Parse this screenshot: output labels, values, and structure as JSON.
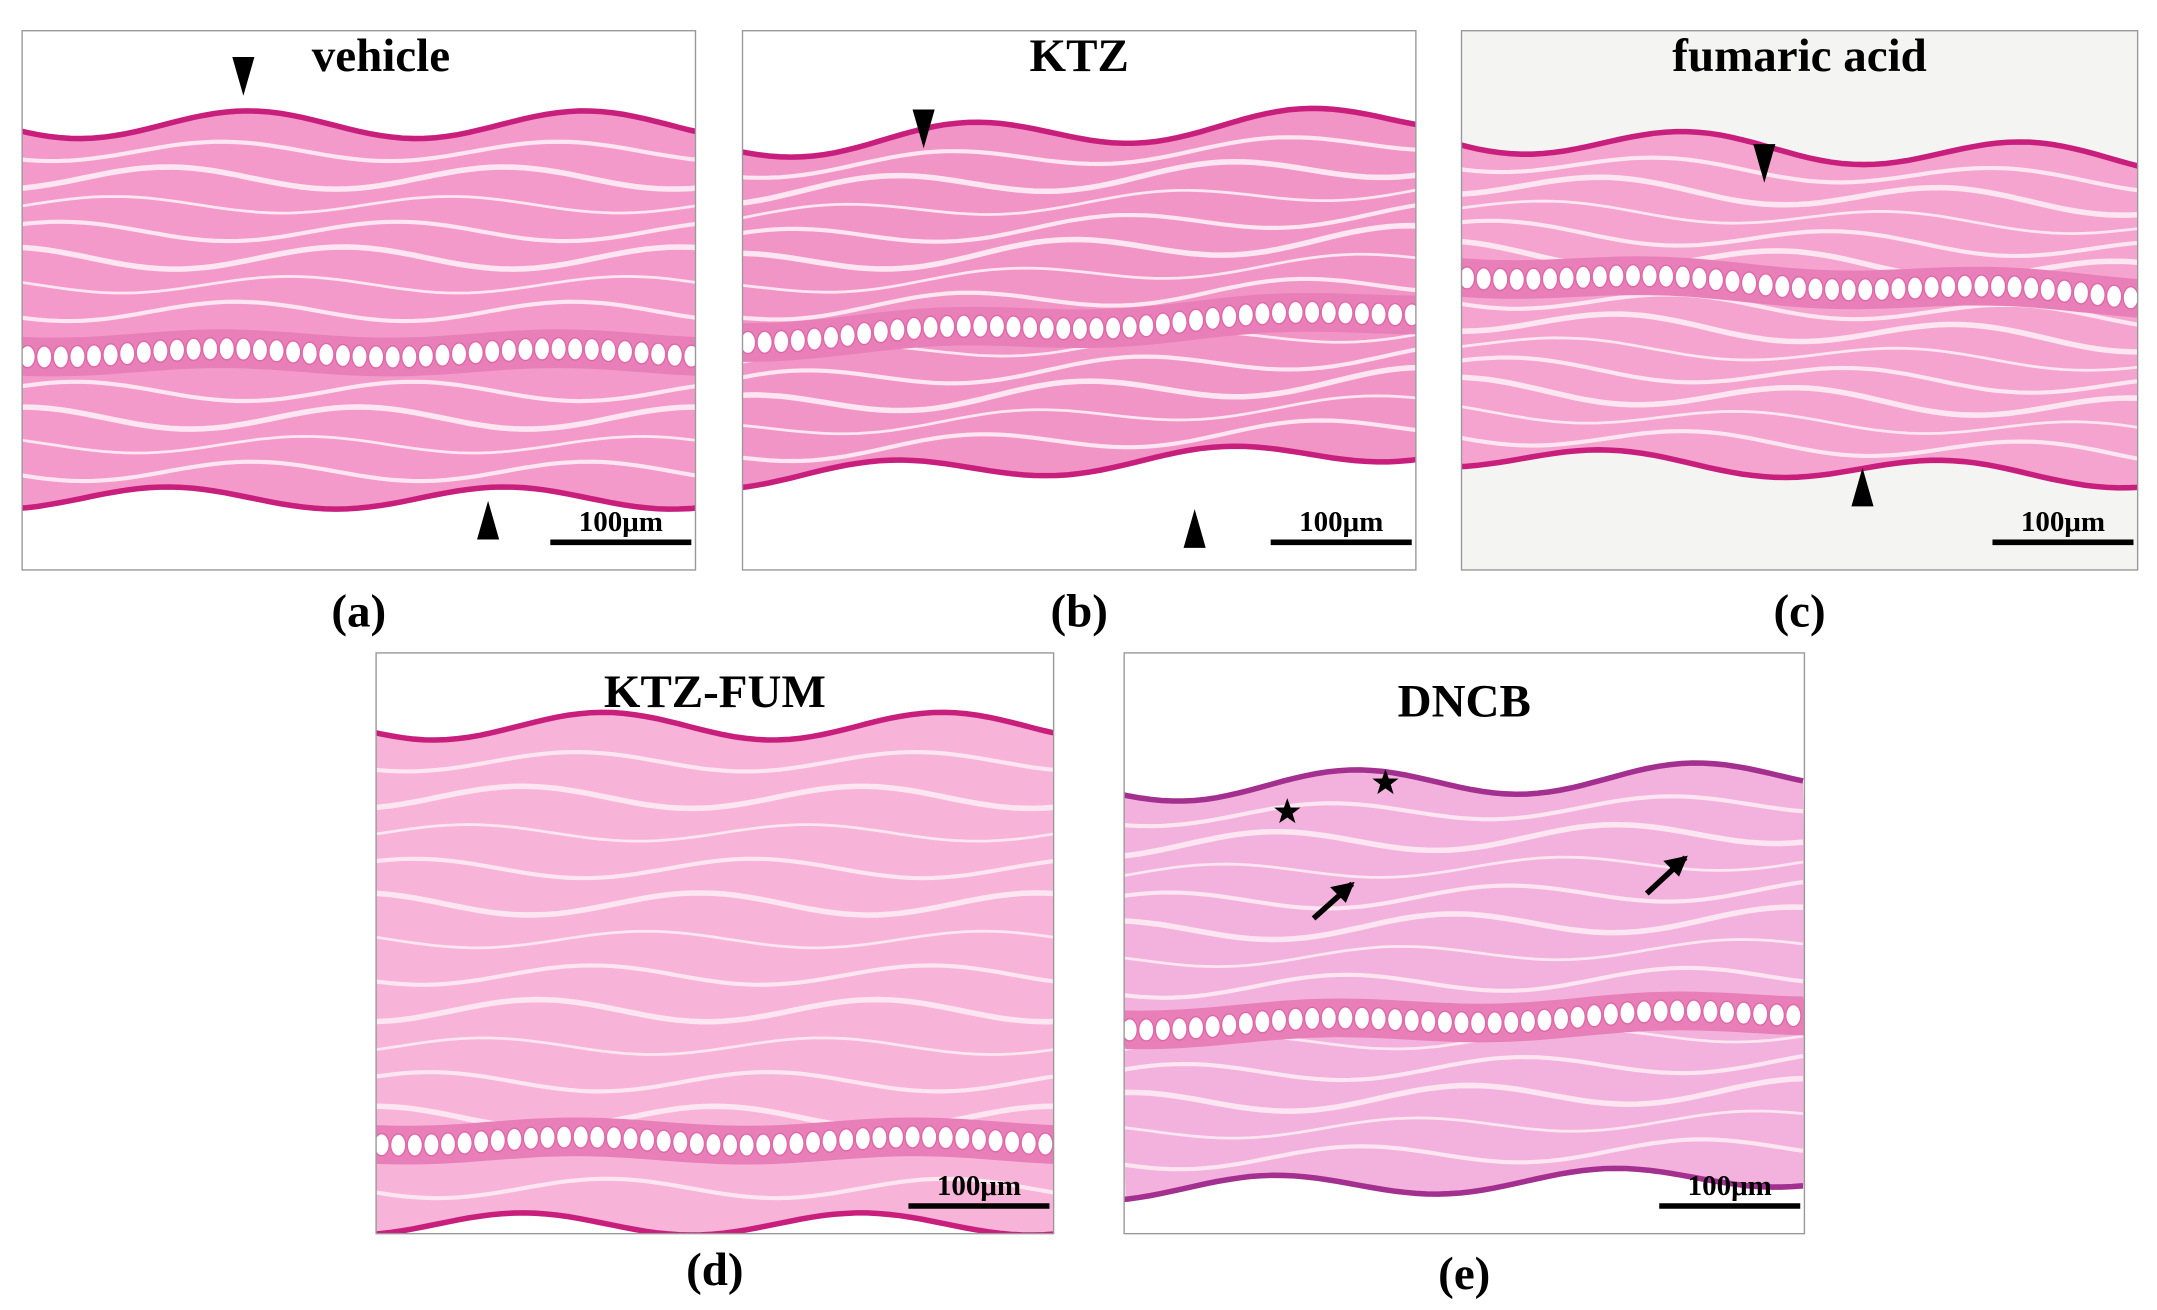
{
  "panels": [
    {
      "title": "vehicle",
      "scale_label": "100μm",
      "caption": "(a)"
    },
    {
      "title": "KTZ",
      "scale_label": "100μm",
      "caption": "(b)"
    },
    {
      "title": "fumaric acid",
      "scale_label": "100μm",
      "caption": "(c)"
    },
    {
      "title": "KTZ-FUM",
      "scale_label": "100μm",
      "caption": "(d)"
    },
    {
      "title": "DNCB",
      "scale_label": "100μm",
      "caption": "(e)"
    }
  ]
}
